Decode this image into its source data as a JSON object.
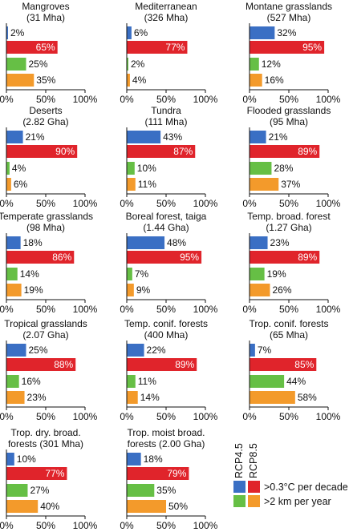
{
  "colors": {
    "rcp45_velocity": "#3a6fc4",
    "rcp85_velocity": "#e0242b",
    "rcp45_distance": "#66bf45",
    "rcp85_distance": "#f39a2b"
  },
  "legend": {
    "rcp45_label": "RCP4.5",
    "rcp85_label": "RCP8.5",
    "velocity_label": ">0.3°C per decade",
    "distance_label": ">2 km per year"
  },
  "chart_data": {
    "type": "bar",
    "orientation": "horizontal",
    "xlim": [
      0,
      100
    ],
    "xticks": [
      "0%",
      "50%",
      "100%"
    ],
    "bar_order": [
      ">0.3°C per decade RCP4.5",
      ">0.3°C per decade RCP8.5",
      ">2 km per year RCP4.5",
      ">2 km per year RCP8.5"
    ],
    "panels": [
      {
        "title": [
          "Mangroves",
          "(31 Mha)"
        ],
        "values": [
          2,
          65,
          25,
          35
        ]
      },
      {
        "title": [
          "Mediterranean",
          "(326 Mha)"
        ],
        "values": [
          6,
          77,
          2,
          4
        ]
      },
      {
        "title": [
          "Montane grasslands",
          "(527 Mha)"
        ],
        "values": [
          32,
          95,
          12,
          16
        ]
      },
      {
        "title": [
          "Deserts",
          "(2.82 Gha)"
        ],
        "values": [
          21,
          90,
          4,
          6
        ]
      },
      {
        "title": [
          "Tundra",
          "(111 Mha)"
        ],
        "values": [
          43,
          87,
          10,
          11
        ]
      },
      {
        "title": [
          "Flooded grasslands",
          "(95 Mha)"
        ],
        "values": [
          21,
          89,
          28,
          37
        ]
      },
      {
        "title": [
          "Temperate grasslands",
          "(98 Mha)"
        ],
        "values": [
          18,
          86,
          14,
          19
        ]
      },
      {
        "title": [
          "Boreal forest, taiga",
          "(1.44 Gha)"
        ],
        "values": [
          48,
          95,
          7,
          9
        ]
      },
      {
        "title": [
          "Temp. broad. forest",
          "(1.27 Gha)"
        ],
        "values": [
          23,
          89,
          19,
          26
        ]
      },
      {
        "title": [
          "Tropical grasslands",
          "(2.07 Gha)"
        ],
        "values": [
          25,
          88,
          16,
          23
        ]
      },
      {
        "title": [
          "Temp. conif. forests",
          "(400 Mha)"
        ],
        "values": [
          22,
          89,
          11,
          14
        ]
      },
      {
        "title": [
          "Trop. conif. forests",
          "(65 Mha)"
        ],
        "values": [
          7,
          85,
          44,
          58
        ]
      },
      {
        "title": [
          "Trop. dry. broad.",
          "forests (301 Mha)"
        ],
        "values": [
          10,
          77,
          27,
          40
        ]
      },
      {
        "title": [
          "Trop. moist broad.",
          "forests (2.00 Gha)"
        ],
        "values": [
          18,
          79,
          35,
          50
        ]
      }
    ]
  }
}
